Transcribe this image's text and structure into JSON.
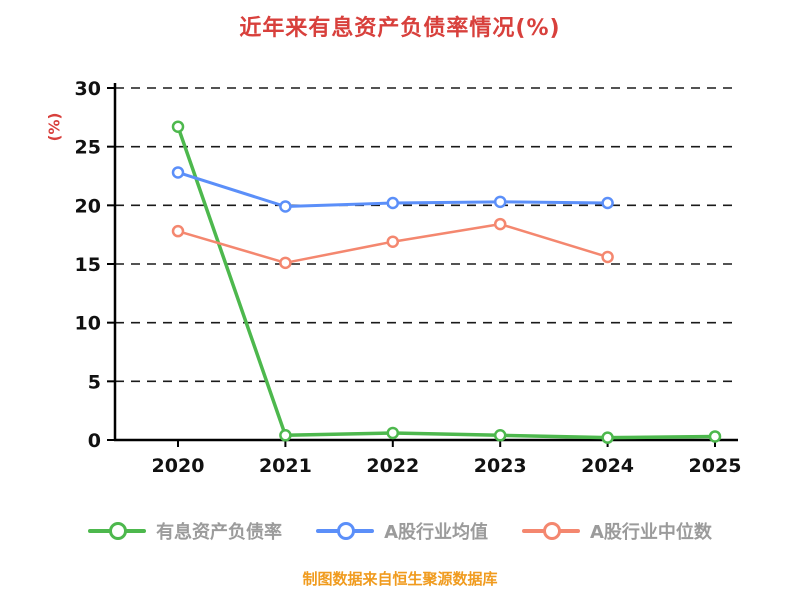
{
  "title": "近年来有息资产负债率情况(%)",
  "footer": "制图数据来自恒生聚源数据库",
  "colors": {
    "title": "#d8403c",
    "axis": "#000000",
    "grid": "#1a1a1a",
    "legend_text": "#9b9b9b",
    "footer_text": "#f09b1e"
  },
  "chart_data": {
    "type": "line",
    "title": "近年来有息资产负债率情况(%)",
    "xlabel": "",
    "ylabel": "(%)",
    "x_ticks": [
      "2020",
      "2021",
      "2022",
      "2023",
      "2024",
      "2025"
    ],
    "y_ticks": [
      0,
      5,
      10,
      15,
      20,
      25,
      30
    ],
    "ylim": [
      0,
      30
    ],
    "grid": "horizontal-dashed",
    "legend_position": "bottom",
    "marker": "circle-white-fill",
    "series": [
      {
        "name": "有息资产负债率",
        "color": "#4db84d",
        "line_width": 3.5,
        "x": [
          2020,
          2021,
          2022,
          2023,
          2024,
          2025
        ],
        "values": [
          26.7,
          0.4,
          0.6,
          0.4,
          0.2,
          0.3
        ]
      },
      {
        "name": "A股行业均值",
        "color": "#5b8ff9",
        "line_width": 3,
        "x": [
          2020,
          2021,
          2022,
          2023,
          2024
        ],
        "values": [
          22.8,
          19.9,
          20.2,
          20.3,
          20.2
        ]
      },
      {
        "name": "A股行业中位数",
        "color": "#f4876f",
        "line_width": 2.5,
        "x": [
          2020,
          2021,
          2022,
          2023,
          2024
        ],
        "values": [
          17.8,
          15.1,
          16.9,
          18.4,
          15.6
        ]
      }
    ]
  }
}
